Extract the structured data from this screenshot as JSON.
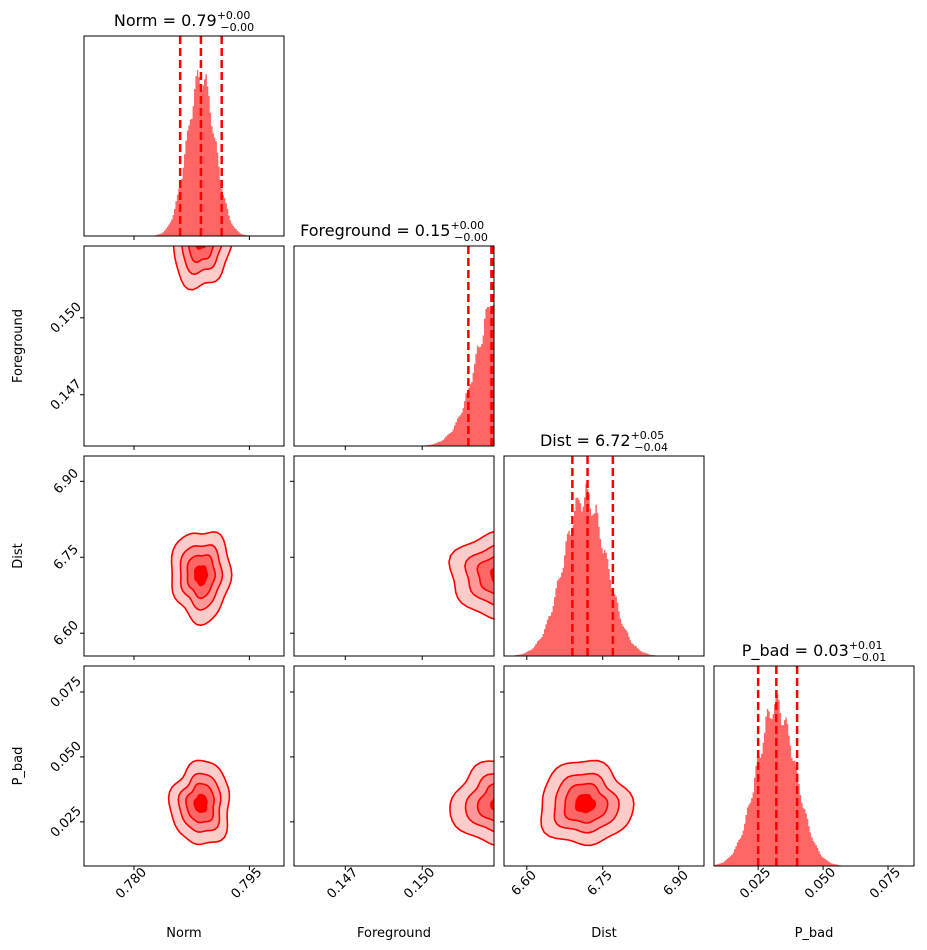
{
  "chart_data": {
    "type": "corner",
    "parameters": [
      "Norm",
      "Foreground",
      "Dist",
      "P_bad"
    ],
    "color": "#ff0000",
    "histogram_fill": "#ff6666",
    "titles": [
      {
        "param": "Norm",
        "prefix": "Norm = 0.79",
        "plus": "+0.00",
        "minus": "−0.00"
      },
      {
        "param": "Foreground",
        "prefix": "Foreground = 0.15",
        "plus": "+0.00",
        "minus": "−0.00"
      },
      {
        "param": "Dist",
        "prefix": "Dist = 6.72",
        "plus": "+0.05",
        "minus": "−0.04"
      },
      {
        "param": "P_bad",
        "prefix": "P_bad = 0.03",
        "plus": "+0.01",
        "minus": "−0.01"
      }
    ],
    "ranges": {
      "Norm": [
        0.7735,
        0.7995
      ],
      "Foreground": [
        0.145,
        0.1528
      ],
      "Dist": [
        6.555,
        6.95
      ],
      "P_bad": [
        0.008,
        0.085
      ]
    },
    "ticks": {
      "Norm": {
        "values": [
          0.78,
          0.795
        ],
        "labels": [
          "0.780",
          "0.795"
        ]
      },
      "Foreground": {
        "values": [
          0.147,
          0.15
        ],
        "labels": [
          "0.147",
          "0.150"
        ]
      },
      "Dist": {
        "values": [
          6.6,
          6.75,
          6.9
        ],
        "labels": [
          "6.60",
          "6.75",
          "6.90"
        ]
      },
      "P_bad": {
        "values": [
          0.025,
          0.05,
          0.075
        ],
        "labels": [
          "0.025",
          "0.050",
          "0.075"
        ]
      }
    },
    "quantiles": {
      "Norm": [
        0.786,
        0.7887,
        0.7914
      ],
      "Foreground": [
        0.1518,
        0.1527,
        0.15275
      ],
      "Dist": [
        6.69,
        6.72,
        6.77
      ],
      "P_bad": [
        0.025,
        0.032,
        0.04
      ]
    },
    "posterior_centers": {
      "Norm": 0.7887,
      "Foreground": 0.1531,
      "Dist": 6.715,
      "P_bad": 0.032
    },
    "posterior_widths": {
      "Norm": 0.0018,
      "Foreground": 0.0009,
      "Dist": 0.042,
      "P_bad": 0.0075
    },
    "axis_labels": {
      "x": [
        "Norm",
        "Foreground",
        "Dist",
        "P_bad"
      ],
      "y": [
        "",
        "Foreground",
        "Dist",
        "P_bad"
      ]
    }
  }
}
